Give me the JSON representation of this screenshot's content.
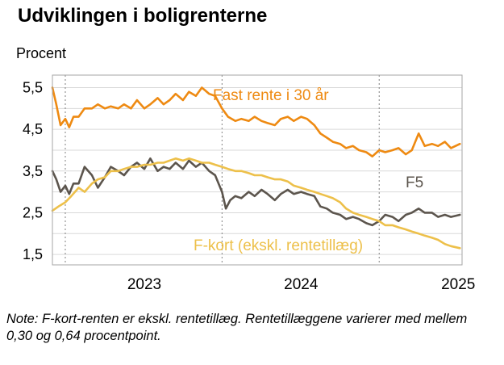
{
  "title": "Udviklingen i boligrenterne",
  "note": "Note: F-kort-renten er ekskl. rentetillæg. Rentetillæggene varierer med mellem 0,30 og 0,64 procentpoint.",
  "colors": {
    "fast": "#EE8A12",
    "f5": "#5C554D",
    "fkort": "#EDC04A",
    "grid": "#D9D9D9",
    "axis": "#A6A6A6",
    "fkort_label": "#EDC04A",
    "fast_label": "#EE8A12",
    "f5_label": "#5C554D"
  },
  "chart_data": {
    "type": "line",
    "title": "Udviklingen i boligrenterne",
    "ylabel": "Procent",
    "xlabel": "",
    "ylim": [
      1.25,
      5.8
    ],
    "xlim": [
      "2022-06-01",
      "2025-01-10"
    ],
    "yticks": [
      "5,5",
      "4,5",
      "3,5",
      "2,5",
      "1,5"
    ],
    "ytick_values": [
      5.5,
      4.5,
      3.5,
      2.5,
      1.5
    ],
    "xticks": [
      "2023",
      "2024",
      "2025"
    ],
    "xtick_dates": [
      "2023-01-01",
      "2024-01-01",
      "2025-01-01"
    ],
    "year_dividers": [
      "2022-07-01",
      "2023-07-01",
      "2024-07-01"
    ],
    "grid": true,
    "series": [
      {
        "name": "Fast rente i 30 år",
        "color_key": "fast",
        "points": [
          [
            "2022-06-01",
            5.5
          ],
          [
            "2022-06-10",
            5.1
          ],
          [
            "2022-06-20",
            4.6
          ],
          [
            "2022-07-01",
            4.75
          ],
          [
            "2022-07-10",
            4.55
          ],
          [
            "2022-07-20",
            4.8
          ],
          [
            "2022-08-01",
            4.8
          ],
          [
            "2022-08-15",
            5.0
          ],
          [
            "2022-09-01",
            5.0
          ],
          [
            "2022-09-15",
            5.1
          ],
          [
            "2022-10-01",
            5.0
          ],
          [
            "2022-10-15",
            5.05
          ],
          [
            "2022-11-01",
            5.0
          ],
          [
            "2022-11-15",
            5.1
          ],
          [
            "2022-12-01",
            5.0
          ],
          [
            "2022-12-15",
            5.2
          ],
          [
            "2023-01-01",
            5.0
          ],
          [
            "2023-01-15",
            5.1
          ],
          [
            "2023-02-01",
            5.25
          ],
          [
            "2023-02-15",
            5.1
          ],
          [
            "2023-03-01",
            5.2
          ],
          [
            "2023-03-15",
            5.35
          ],
          [
            "2023-04-01",
            5.2
          ],
          [
            "2023-04-15",
            5.4
          ],
          [
            "2023-05-01",
            5.3
          ],
          [
            "2023-05-15",
            5.5
          ],
          [
            "2023-06-01",
            5.35
          ],
          [
            "2023-06-15",
            5.3
          ],
          [
            "2023-07-01",
            5.0
          ],
          [
            "2023-07-15",
            4.8
          ],
          [
            "2023-08-01",
            4.7
          ],
          [
            "2023-08-15",
            4.75
          ],
          [
            "2023-09-01",
            4.7
          ],
          [
            "2023-09-15",
            4.8
          ],
          [
            "2023-10-01",
            4.7
          ],
          [
            "2023-10-15",
            4.65
          ],
          [
            "2023-11-01",
            4.6
          ],
          [
            "2023-11-15",
            4.75
          ],
          [
            "2023-12-01",
            4.8
          ],
          [
            "2023-12-15",
            4.7
          ],
          [
            "2024-01-01",
            4.8
          ],
          [
            "2024-01-15",
            4.75
          ],
          [
            "2024-02-01",
            4.6
          ],
          [
            "2024-02-15",
            4.4
          ],
          [
            "2024-03-01",
            4.3
          ],
          [
            "2024-03-15",
            4.2
          ],
          [
            "2024-04-01",
            4.15
          ],
          [
            "2024-04-15",
            4.05
          ],
          [
            "2024-05-01",
            4.1
          ],
          [
            "2024-05-15",
            4.0
          ],
          [
            "2024-06-01",
            3.95
          ],
          [
            "2024-06-15",
            3.85
          ],
          [
            "2024-07-01",
            4.0
          ],
          [
            "2024-07-15",
            3.95
          ],
          [
            "2024-08-01",
            4.0
          ],
          [
            "2024-08-15",
            4.05
          ],
          [
            "2024-09-01",
            3.9
          ],
          [
            "2024-09-15",
            4.0
          ],
          [
            "2024-10-01",
            4.4
          ],
          [
            "2024-10-15",
            4.1
          ],
          [
            "2024-11-01",
            4.15
          ],
          [
            "2024-11-15",
            4.1
          ],
          [
            "2024-12-01",
            4.2
          ],
          [
            "2024-12-15",
            4.05
          ],
          [
            "2025-01-05",
            4.15
          ]
        ]
      },
      {
        "name": "F5",
        "color_key": "f5",
        "points": [
          [
            "2022-06-01",
            3.5
          ],
          [
            "2022-06-10",
            3.3
          ],
          [
            "2022-06-20",
            3.0
          ],
          [
            "2022-07-01",
            3.15
          ],
          [
            "2022-07-10",
            2.95
          ],
          [
            "2022-07-20",
            3.2
          ],
          [
            "2022-08-01",
            3.2
          ],
          [
            "2022-08-15",
            3.6
          ],
          [
            "2022-09-01",
            3.4
          ],
          [
            "2022-09-15",
            3.1
          ],
          [
            "2022-10-01",
            3.35
          ],
          [
            "2022-10-15",
            3.6
          ],
          [
            "2022-11-01",
            3.5
          ],
          [
            "2022-11-15",
            3.4
          ],
          [
            "2022-12-01",
            3.6
          ],
          [
            "2022-12-15",
            3.7
          ],
          [
            "2023-01-01",
            3.55
          ],
          [
            "2023-01-15",
            3.8
          ],
          [
            "2023-02-01",
            3.5
          ],
          [
            "2023-02-15",
            3.6
          ],
          [
            "2023-03-01",
            3.55
          ],
          [
            "2023-03-15",
            3.7
          ],
          [
            "2023-04-01",
            3.55
          ],
          [
            "2023-04-15",
            3.75
          ],
          [
            "2023-05-01",
            3.6
          ],
          [
            "2023-05-15",
            3.7
          ],
          [
            "2023-06-01",
            3.5
          ],
          [
            "2023-06-15",
            3.4
          ],
          [
            "2023-07-01",
            3.0
          ],
          [
            "2023-07-10",
            2.6
          ],
          [
            "2023-07-20",
            2.8
          ],
          [
            "2023-08-01",
            2.9
          ],
          [
            "2023-08-15",
            2.85
          ],
          [
            "2023-09-01",
            3.0
          ],
          [
            "2023-09-15",
            2.9
          ],
          [
            "2023-10-01",
            3.05
          ],
          [
            "2023-10-15",
            2.95
          ],
          [
            "2023-11-01",
            2.8
          ],
          [
            "2023-11-15",
            2.95
          ],
          [
            "2023-12-01",
            3.05
          ],
          [
            "2023-12-15",
            2.95
          ],
          [
            "2024-01-01",
            3.0
          ],
          [
            "2024-01-15",
            2.95
          ],
          [
            "2024-02-01",
            2.9
          ],
          [
            "2024-02-15",
            2.65
          ],
          [
            "2024-03-01",
            2.6
          ],
          [
            "2024-03-15",
            2.5
          ],
          [
            "2024-04-01",
            2.45
          ],
          [
            "2024-04-15",
            2.35
          ],
          [
            "2024-05-01",
            2.4
          ],
          [
            "2024-05-15",
            2.35
          ],
          [
            "2024-06-01",
            2.25
          ],
          [
            "2024-06-15",
            2.2
          ],
          [
            "2024-07-01",
            2.3
          ],
          [
            "2024-07-15",
            2.45
          ],
          [
            "2024-08-01",
            2.4
          ],
          [
            "2024-08-15",
            2.3
          ],
          [
            "2024-09-01",
            2.45
          ],
          [
            "2024-09-15",
            2.5
          ],
          [
            "2024-10-01",
            2.6
          ],
          [
            "2024-10-15",
            2.5
          ],
          [
            "2024-11-01",
            2.5
          ],
          [
            "2024-11-15",
            2.4
          ],
          [
            "2024-12-01",
            2.45
          ],
          [
            "2024-12-15",
            2.4
          ],
          [
            "2025-01-05",
            2.45
          ]
        ]
      },
      {
        "name": "F-kort (ekskl. rentetillæg)",
        "color_key": "fkort",
        "points": [
          [
            "2022-06-01",
            2.55
          ],
          [
            "2022-06-15",
            2.65
          ],
          [
            "2022-07-01",
            2.75
          ],
          [
            "2022-07-15",
            2.9
          ],
          [
            "2022-08-01",
            3.1
          ],
          [
            "2022-08-15",
            3.0
          ],
          [
            "2022-09-01",
            3.2
          ],
          [
            "2022-09-15",
            3.3
          ],
          [
            "2022-10-01",
            3.35
          ],
          [
            "2022-10-15",
            3.5
          ],
          [
            "2022-11-01",
            3.5
          ],
          [
            "2022-11-15",
            3.55
          ],
          [
            "2022-12-01",
            3.6
          ],
          [
            "2022-12-15",
            3.6
          ],
          [
            "2023-01-01",
            3.65
          ],
          [
            "2023-01-15",
            3.65
          ],
          [
            "2023-02-01",
            3.7
          ],
          [
            "2023-02-15",
            3.7
          ],
          [
            "2023-03-01",
            3.75
          ],
          [
            "2023-03-15",
            3.8
          ],
          [
            "2023-04-01",
            3.75
          ],
          [
            "2023-04-15",
            3.8
          ],
          [
            "2023-05-01",
            3.75
          ],
          [
            "2023-05-15",
            3.7
          ],
          [
            "2023-06-01",
            3.7
          ],
          [
            "2023-06-15",
            3.65
          ],
          [
            "2023-07-01",
            3.6
          ],
          [
            "2023-07-15",
            3.55
          ],
          [
            "2023-08-01",
            3.5
          ],
          [
            "2023-08-15",
            3.5
          ],
          [
            "2023-09-01",
            3.45
          ],
          [
            "2023-09-15",
            3.4
          ],
          [
            "2023-10-01",
            3.4
          ],
          [
            "2023-10-15",
            3.35
          ],
          [
            "2023-11-01",
            3.3
          ],
          [
            "2023-11-15",
            3.3
          ],
          [
            "2023-12-01",
            3.25
          ],
          [
            "2023-12-15",
            3.15
          ],
          [
            "2024-01-01",
            3.1
          ],
          [
            "2024-01-15",
            3.05
          ],
          [
            "2024-02-01",
            3.0
          ],
          [
            "2024-02-15",
            2.95
          ],
          [
            "2024-03-01",
            2.9
          ],
          [
            "2024-03-15",
            2.85
          ],
          [
            "2024-04-01",
            2.75
          ],
          [
            "2024-04-15",
            2.6
          ],
          [
            "2024-05-01",
            2.5
          ],
          [
            "2024-05-15",
            2.45
          ],
          [
            "2024-06-01",
            2.4
          ],
          [
            "2024-06-15",
            2.35
          ],
          [
            "2024-07-01",
            2.3
          ],
          [
            "2024-07-15",
            2.2
          ],
          [
            "2024-08-01",
            2.2
          ],
          [
            "2024-08-15",
            2.15
          ],
          [
            "2024-09-01",
            2.1
          ],
          [
            "2024-09-15",
            2.05
          ],
          [
            "2024-10-01",
            2.0
          ],
          [
            "2024-10-15",
            1.95
          ],
          [
            "2024-11-01",
            1.9
          ],
          [
            "2024-11-15",
            1.85
          ],
          [
            "2024-12-01",
            1.75
          ],
          [
            "2024-12-15",
            1.7
          ],
          [
            "2025-01-05",
            1.65
          ]
        ]
      }
    ]
  }
}
